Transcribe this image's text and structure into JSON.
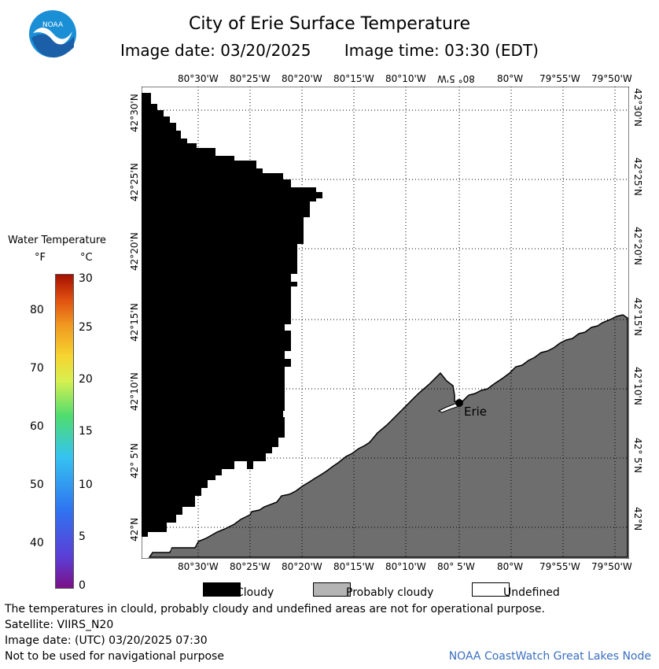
{
  "header": {
    "title": "City of Erie Surface Temperature",
    "image_date": "Image date: 03/20/2025",
    "image_time": "Image time: 03:30 (EDT)"
  },
  "logo": {
    "text": "NOAA"
  },
  "lon_labels": [
    "80°30'W",
    "80°25'W",
    "80°20'W",
    "80°15'W",
    "80°10'W",
    "80° 5'W",
    "80°W",
    "79°55'W",
    "79°50'W"
  ],
  "top_lon_labels": [
    "80°30'W",
    "80°25'W",
    "80°20'W",
    "80°15'W",
    "80°10'W",
    "80° 5'W",
    "80°W",
    "79°55'W",
    "79°50'W"
  ],
  "lat_labels": [
    "42°30'N",
    "42°25'N",
    "42°20'N",
    "42°15'N",
    "42°10'N",
    "42° 5'N",
    "42°N"
  ],
  "city": {
    "name": "Erie"
  },
  "colorbar": {
    "title": "Water Temperature",
    "unit_f": "°F",
    "unit_c": "°C",
    "f_ticks": [
      "80",
      "70",
      "60",
      "50",
      "40"
    ],
    "c_ticks": [
      "30",
      "25",
      "20",
      "15",
      "10",
      "5",
      "0"
    ]
  },
  "legend": [
    {
      "label": "Cloudy",
      "color": "#000000"
    },
    {
      "label": "Probably cloudy",
      "color": "#b4b4b4"
    },
    {
      "label": "Undefined",
      "color": "#ffffff"
    }
  ],
  "colors": {
    "land": "#6e6e6e",
    "cloud": "#000000"
  },
  "footer": {
    "note": "The temperatures in clould, probably cloudy and undefined areas are not for operational purpose.",
    "satellite": "Satellite: VIIRS_N20",
    "utc_date": "Image date: (UTC) 03/20/2025  07:30",
    "nav": "Not to be used for navigational purpose",
    "credit": "NOAA CoastWatch Great Lakes Node"
  }
}
